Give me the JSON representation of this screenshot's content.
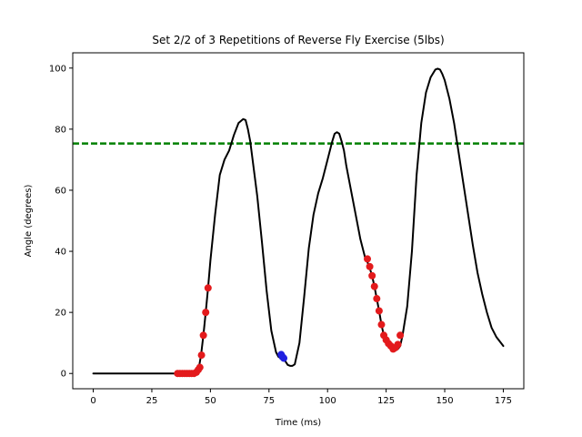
{
  "chart_data": {
    "type": "line",
    "title": "Set 2/2 of 3 Repetitions of Reverse Fly Exercise (5lbs)",
    "xlabel": "Time (ms)",
    "ylabel": "Angle (degrees)",
    "xlim": [
      -8.75,
      183.75
    ],
    "ylim": [
      -5,
      105
    ],
    "xticks": [
      0,
      25,
      50,
      75,
      100,
      125,
      150,
      175
    ],
    "yticks": [
      0,
      20,
      40,
      60,
      80,
      100
    ],
    "grid": false,
    "threshold": {
      "y": 75.3,
      "color": "#008000",
      "style": "dashed"
    },
    "series": [
      {
        "style": "line",
        "color": "#000000",
        "x": [
          0,
          10,
          20,
          30,
          35,
          40,
          43,
          44,
          45,
          46,
          47,
          48,
          49,
          50,
          52,
          54,
          56,
          58,
          60,
          62,
          64,
          65,
          66,
          67,
          68,
          70,
          72,
          74,
          76,
          78,
          79,
          80,
          81,
          82,
          83,
          84,
          85,
          86,
          88,
          90,
          92,
          94,
          96,
          98,
          100,
          102,
          103,
          104,
          105,
          106,
          107,
          108,
          110,
          112,
          114,
          116,
          117,
          118,
          119,
          120,
          121,
          122,
          123,
          124,
          125,
          126,
          127,
          128,
          129,
          130,
          131,
          132,
          134,
          136,
          138,
          140,
          142,
          144,
          146,
          147,
          148,
          149,
          150,
          152,
          154,
          156,
          158,
          160,
          162,
          164,
          166,
          168,
          170,
          172,
          175
        ],
        "y": [
          0,
          0,
          0,
          0,
          0,
          0,
          0,
          0.5,
          1.5,
          6,
          12.5,
          20,
          28,
          37,
          52,
          65,
          70,
          73,
          78,
          82,
          83.3,
          83,
          80,
          76,
          70,
          58,
          43,
          27,
          14,
          7,
          5.5,
          5,
          5.2,
          4,
          2.8,
          2.5,
          2.5,
          3,
          10,
          25,
          41,
          52,
          59,
          64,
          70,
          76,
          78.5,
          79,
          78.5,
          76,
          73,
          68,
          60,
          52,
          44,
          38,
          36.5,
          34.5,
          32,
          28.5,
          24.5,
          20.5,
          16,
          12.5,
          11,
          10,
          9.5,
          8,
          7.5,
          8,
          9,
          12.5,
          22,
          40,
          65,
          82,
          92,
          97,
          99.5,
          99.8,
          99.5,
          98,
          96,
          90,
          82,
          72,
          62,
          52,
          42,
          33,
          26,
          20,
          15,
          12,
          9
        ]
      },
      {
        "style": "markers",
        "color": "#e31a1c",
        "x": [
          36,
          37,
          38,
          39,
          40,
          41,
          42,
          43,
          44,
          44.8,
          45.5,
          46.2,
          47,
          48,
          49
        ],
        "y": [
          0,
          0,
          0,
          0,
          0,
          0,
          0,
          0,
          0.4,
          1.2,
          2,
          6,
          12.5,
          20,
          28
        ]
      },
      {
        "style": "markers",
        "color": "#1f1fe0",
        "x": [
          80.2,
          80.7,
          81.3
        ],
        "y": [
          6.2,
          5.5,
          5
        ]
      },
      {
        "style": "markers",
        "color": "#e31a1c",
        "x": [
          117,
          118,
          119,
          120,
          121,
          122,
          123,
          124,
          125,
          126,
          127,
          128,
          129,
          130,
          131
        ],
        "y": [
          37.5,
          35,
          32,
          28.5,
          24.5,
          20.5,
          16,
          12.5,
          11,
          9.8,
          9,
          8,
          8.5,
          9.5,
          12.5
        ]
      }
    ]
  }
}
